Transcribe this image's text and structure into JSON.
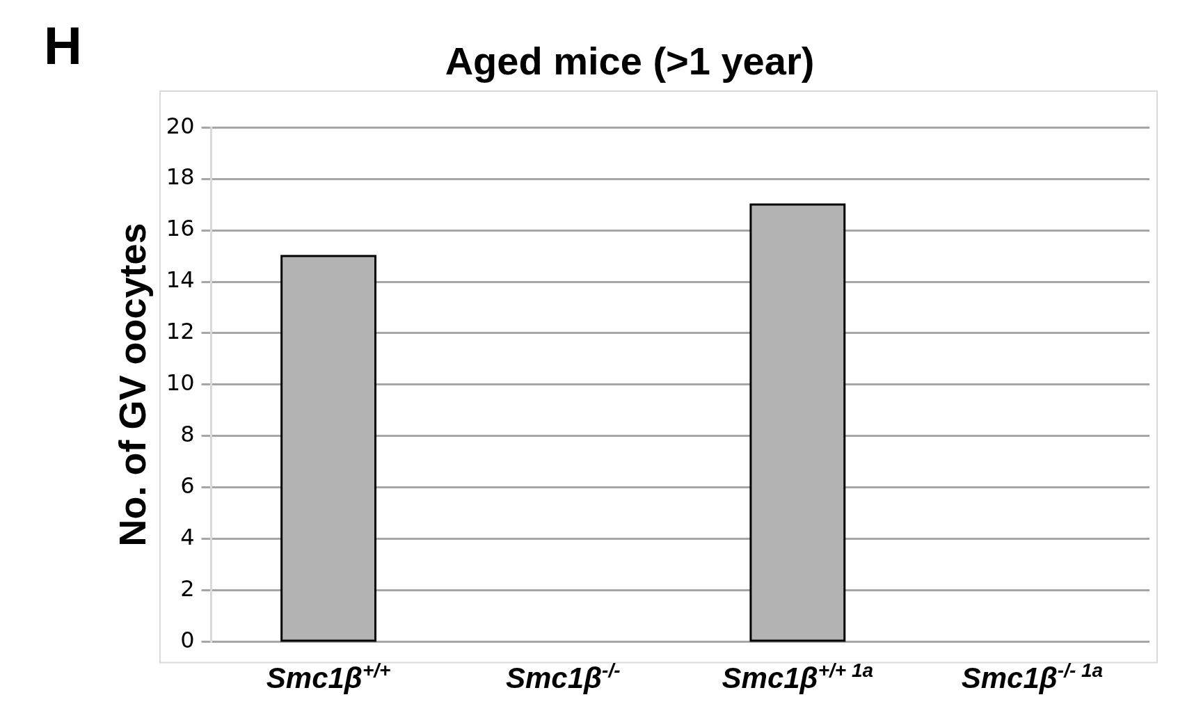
{
  "chart_data": {
    "type": "bar",
    "title": "Aged mice (>1 year)",
    "ylabel": "No. of GV oocytes",
    "categories": [
      "Smc1β$^{+/+}$",
      "Smc1β$^{-/-}$",
      "Smc1β$^{+/+ 1a}$",
      "Smc1β$^{-/- 1a}$"
    ],
    "values": [
      15,
      0,
      17,
      0
    ],
    "color": "#b3b3b3",
    "ylim": [
      0,
      20
    ],
    "yticks": [
      0,
      2,
      4,
      6,
      8,
      10,
      12,
      14,
      16,
      18,
      20
    ],
    "grid": "y",
    "annotations": [
      "H"
    ]
  }
}
